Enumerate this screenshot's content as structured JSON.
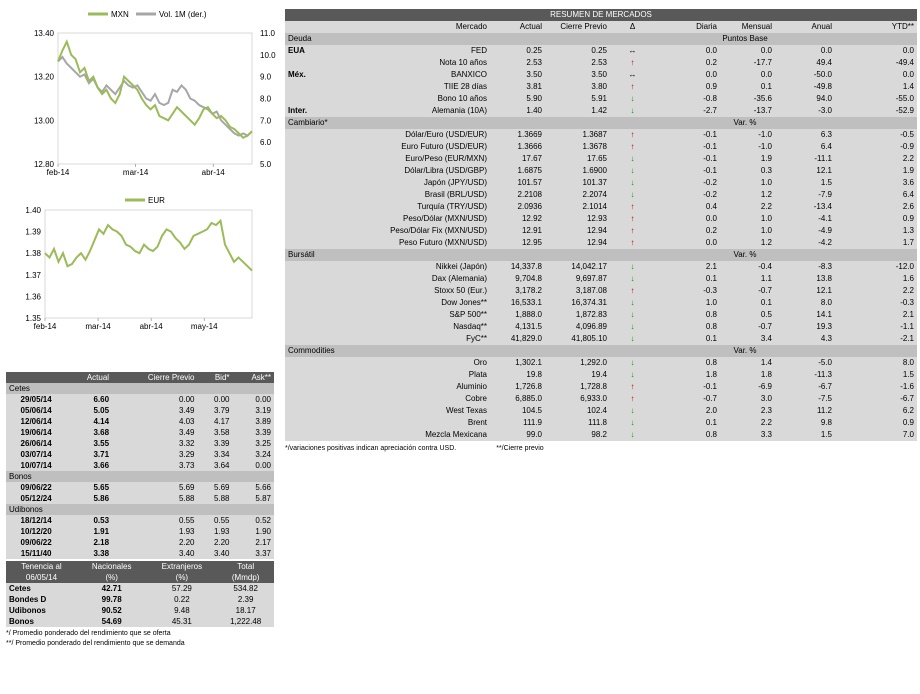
{
  "chart_data": [
    {
      "type": "line",
      "title": "",
      "series": [
        {
          "name": "MXN",
          "axis": "left",
          "color": "#9bbb59",
          "values": [
            13.27,
            13.32,
            13.36,
            13.3,
            13.28,
            13.22,
            13.24,
            13.18,
            13.2,
            13.15,
            13.12,
            13.14,
            13.1,
            13.08,
            13.12,
            13.2,
            13.18,
            13.16,
            13.14,
            13.1,
            13.07,
            13.05,
            13.07,
            13.02,
            13.01,
            13.0,
            13.03,
            13.06,
            13.04,
            13.02,
            13.0,
            12.98,
            13.01,
            13.05,
            13.06,
            13.03,
            13.01,
            13.02,
            13.0,
            12.97,
            12.96,
            12.94,
            12.92,
            12.93,
            12.95
          ]
        },
        {
          "name": "Vol. 1M (der.)",
          "axis": "right",
          "color": "#a6a6a6",
          "values": [
            9.7,
            9.9,
            9.6,
            9.4,
            9.2,
            9.0,
            9.1,
            8.7,
            8.9,
            8.5,
            8.3,
            8.6,
            8.4,
            8.2,
            8.5,
            8.8,
            8.6,
            8.5,
            8.6,
            8.3,
            8.0,
            7.9,
            8.2,
            7.8,
            7.7,
            7.8,
            8.4,
            8.3,
            8.6,
            8.4,
            8.0,
            7.9,
            7.7,
            7.6,
            7.5,
            7.3,
            7.4,
            7.0,
            6.8,
            6.6,
            6.4,
            6.3,
            6.4,
            6.3,
            6.5
          ]
        }
      ],
      "xlabels": [
        "feb-14",
        "mar-14",
        "abr-14"
      ],
      "yleft": {
        "ticks": [
          "12.80",
          "13.00",
          "13.20",
          "13.40"
        ],
        "lim": [
          12.8,
          13.4
        ]
      },
      "yright": {
        "ticks": [
          "5.0",
          "6.0",
          "7.0",
          "8.0",
          "9.0",
          "10.0",
          "11.0"
        ],
        "lim": [
          5,
          11
        ]
      },
      "legend": "top"
    },
    {
      "type": "line",
      "title": "",
      "series": [
        {
          "name": "EUR",
          "color": "#9bbb59",
          "values": [
            1.38,
            1.378,
            1.382,
            1.376,
            1.38,
            1.374,
            1.375,
            1.378,
            1.38,
            1.377,
            1.381,
            1.386,
            1.391,
            1.389,
            1.393,
            1.391,
            1.39,
            1.388,
            1.384,
            1.383,
            1.381,
            1.38,
            1.384,
            1.382,
            1.381,
            1.383,
            1.388,
            1.391,
            1.39,
            1.387,
            1.385,
            1.382,
            1.384,
            1.388,
            1.389,
            1.39,
            1.391,
            1.394,
            1.393,
            1.395,
            1.384,
            1.38,
            1.376,
            1.378,
            1.376,
            1.374,
            1.372
          ]
        }
      ],
      "xlabels": [
        "feb-14",
        "mar-14",
        "abr-14",
        "may-14"
      ],
      "yleft": {
        "ticks": [
          "1.35",
          "1.36",
          "1.37",
          "1.38",
          "1.39",
          "1.40"
        ],
        "lim": [
          1.35,
          1.4
        ]
      },
      "legend": "top"
    }
  ],
  "left": {
    "header": [
      "",
      "Actual",
      "Cierre Previo",
      "Bid*",
      "Ask**"
    ],
    "groups": [
      {
        "name": "Cetes",
        "rows": [
          [
            "29/05/14",
            "6.60",
            "0.00",
            "0.00",
            "0.00"
          ],
          [
            "05/06/14",
            "5.05",
            "3.49",
            "3.79",
            "3.19"
          ],
          [
            "12/06/14",
            "4.14",
            "4.03",
            "4.17",
            "3.89"
          ],
          [
            "19/06/14",
            "3.68",
            "3.49",
            "3.58",
            "3.39"
          ],
          [
            "26/06/14",
            "3.55",
            "3.32",
            "3.39",
            "3.25"
          ],
          [
            "03/07/14",
            "3.71",
            "3.29",
            "3.34",
            "3.24"
          ],
          [
            "10/07/14",
            "3.66",
            "3.73",
            "3.64",
            "0.00"
          ]
        ]
      },
      {
        "name": "Bonos",
        "rows": [
          [
            "09/06/22",
            "5.65",
            "5.69",
            "5.69",
            "5.66"
          ],
          [
            "05/12/24",
            "5.86",
            "5.88",
            "5.88",
            "5.87"
          ]
        ]
      },
      {
        "name": "Udibonos",
        "rows": [
          [
            "18/12/14",
            "0.53",
            "0.55",
            "0.55",
            "0.52"
          ],
          [
            "10/12/20",
            "1.91",
            "1.93",
            "1.93",
            "1.90"
          ],
          [
            "09/06/22",
            "2.18",
            "2.20",
            "2.20",
            "2.17"
          ],
          [
            "15/11/40",
            "3.38",
            "3.40",
            "3.40",
            "3.37"
          ]
        ]
      }
    ],
    "ten_header": [
      [
        "Tenencia al",
        "Nacionales",
        "Extranjeros",
        "Total"
      ],
      [
        "06/05/14",
        "(%)",
        "(%)",
        "(Mmdp)"
      ]
    ],
    "ten_rows": [
      [
        "Cetes",
        "42.71",
        "57.29",
        "534.82"
      ],
      [
        "Bondes D",
        "99.78",
        "0.22",
        "2.39"
      ],
      [
        "Udibonos",
        "90.52",
        "9.48",
        "18.17"
      ],
      [
        "Bonos",
        "54.69",
        "45.31",
        "1,222.48"
      ]
    ],
    "notes": [
      "*/ Promedio ponderado del rendimiento que se oferta",
      "**/ Promedio ponderado del rendimiento que se demanda"
    ]
  },
  "right": {
    "title": "RESUMEN DE MERCADOS",
    "header": [
      "Mercado",
      "Actual",
      "Cierre Previo",
      "Δ",
      "Diaria",
      "Mensual",
      "Anual",
      "YTD**"
    ],
    "colors": {
      "up": "#c00000",
      "down": "#00a000",
      "flat": "#000000"
    },
    "sections": [
      {
        "name": "Deuda",
        "unit": "Puntos Base",
        "rows": [
          [
            "EUA",
            "FED",
            "0.25",
            "0.25",
            "flat",
            "0.0",
            "0.0",
            "0.0",
            "0.0"
          ],
          [
            "",
            "Nota 10 años",
            "2.53",
            "2.53",
            "up",
            "0.2",
            "-17.7",
            "49.4",
            "-49.4"
          ],
          [
            "Méx.",
            "BANXICO",
            "3.50",
            "3.50",
            "flat",
            "0.0",
            "0.0",
            "-50.0",
            "0.0"
          ],
          [
            "",
            "TIIE 28 días",
            "3.81",
            "3.80",
            "up",
            "0.9",
            "0.1",
            "-49.8",
            "1.4"
          ],
          [
            "",
            "Bono 10 años",
            "5.90",
            "5.91",
            "down",
            "-0.8",
            "-35.6",
            "94.0",
            "-55.0"
          ],
          [
            "Inter.",
            "Alemania (10A)",
            "1.40",
            "1.42",
            "down",
            "-2.7",
            "-13.7",
            "-3.0",
            "-52.9"
          ]
        ]
      },
      {
        "name": "Cambiario*",
        "unit": "Var. %",
        "rows": [
          [
            "",
            "Dólar/Euro (USD/EUR)",
            "1.3669",
            "1.3687",
            "up",
            "-0.1",
            "-1.0",
            "6.3",
            "-0.5"
          ],
          [
            "",
            "Euro Futuro (USD/EUR)",
            "1.3666",
            "1.3678",
            "up",
            "-0.1",
            "-1.0",
            "6.4",
            "-0.9"
          ],
          [
            "",
            "Euro/Peso (EUR/MXN)",
            "17.67",
            "17.65",
            "down",
            "-0.1",
            "1.9",
            "-11.1",
            "2.2"
          ],
          [
            "",
            "Dólar/Libra (USD/GBP)",
            "1.6875",
            "1.6900",
            "down",
            "-0.1",
            "0.3",
            "12.1",
            "1.9"
          ],
          [
            "",
            "Japón (JPY/USD)",
            "101.57",
            "101.37",
            "down",
            "-0.2",
            "1.0",
            "1.5",
            "3.6"
          ],
          [
            "",
            "Brasil (BRL/USD)",
            "2.2108",
            "2.2074",
            "down",
            "-0.2",
            "1.2",
            "-7.9",
            "6.4"
          ],
          [
            "",
            "Turquía (TRY/USD)",
            "2.0936",
            "2.1014",
            "up",
            "0.4",
            "2.2",
            "-13.4",
            "2.6"
          ],
          [
            "",
            "Peso/Dólar (MXN/USD)",
            "12.92",
            "12.93",
            "up",
            "0.0",
            "1.0",
            "-4.1",
            "0.9"
          ],
          [
            "",
            "Peso/Dólar Fix (MXN/USD)",
            "12.91",
            "12.94",
            "up",
            "0.2",
            "1.0",
            "-4.9",
            "1.3"
          ],
          [
            "",
            "Peso Futuro (MXN/USD)",
            "12.95",
            "12.94",
            "up",
            "0.0",
            "1.2",
            "-4.2",
            "1.7"
          ]
        ]
      },
      {
        "name": "Bursátil",
        "unit": "Var. %",
        "rows": [
          [
            "",
            "Nikkei (Japón)",
            "14,337.8",
            "14,042.17",
            "down",
            "2.1",
            "-0.4",
            "-8.3",
            "-12.0"
          ],
          [
            "",
            "Dax (Alemania)",
            "9,704.8",
            "9,697.87",
            "down",
            "0.1",
            "1.1",
            "13.8",
            "1.6"
          ],
          [
            "",
            "Stoxx 50 (Eur.)",
            "3,178.2",
            "3,187.08",
            "up",
            "-0.3",
            "-0.7",
            "12.1",
            "2.2"
          ],
          [
            "",
            "Dow Jones**",
            "16,533.1",
            "16,374.31",
            "down",
            "1.0",
            "0.1",
            "8.0",
            "-0.3"
          ],
          [
            "",
            "S&P 500**",
            "1,888.0",
            "1,872.83",
            "down",
            "0.8",
            "0.5",
            "14.1",
            "2.1"
          ],
          [
            "",
            "Nasdaq**",
            "4,131.5",
            "4,096.89",
            "down",
            "0.8",
            "-0.7",
            "19.3",
            "-1.1"
          ],
          [
            "",
            "FyC**",
            "41,829.0",
            "41,805.10",
            "down",
            "0.1",
            "3.4",
            "4.3",
            "-2.1"
          ]
        ]
      },
      {
        "name": "Commodities",
        "unit": "Var. %",
        "rows": [
          [
            "",
            "Oro",
            "1,302.1",
            "1,292.0",
            "down",
            "0.8",
            "1.4",
            "-5.0",
            "8.0"
          ],
          [
            "",
            "Plata",
            "19.8",
            "19.4",
            "down",
            "1.8",
            "1.8",
            "-11.3",
            "1.5"
          ],
          [
            "",
            "Aluminio",
            "1,726.8",
            "1,728.8",
            "up",
            "-0.1",
            "-6.9",
            "-6.7",
            "-1.6"
          ],
          [
            "",
            "Cobre",
            "6,885.0",
            "6,933.0",
            "up",
            "-0.7",
            "3.0",
            "-7.5",
            "-6.7"
          ],
          [
            "",
            "West Texas",
            "104.5",
            "102.4",
            "down",
            "2.0",
            "2.3",
            "11.2",
            "6.2"
          ],
          [
            "",
            "Brent",
            "111.9",
            "111.8",
            "down",
            "0.1",
            "2.2",
            "9.8",
            "0.9"
          ],
          [
            "",
            "Mezcla Mexicana",
            "99.0",
            "98.2",
            "down",
            "0.8",
            "3.3",
            "1.5",
            "7.0"
          ]
        ]
      }
    ],
    "notes": [
      "*/variaciones positivas indican apreciación contra USD.",
      "**/Cierre previo"
    ]
  }
}
